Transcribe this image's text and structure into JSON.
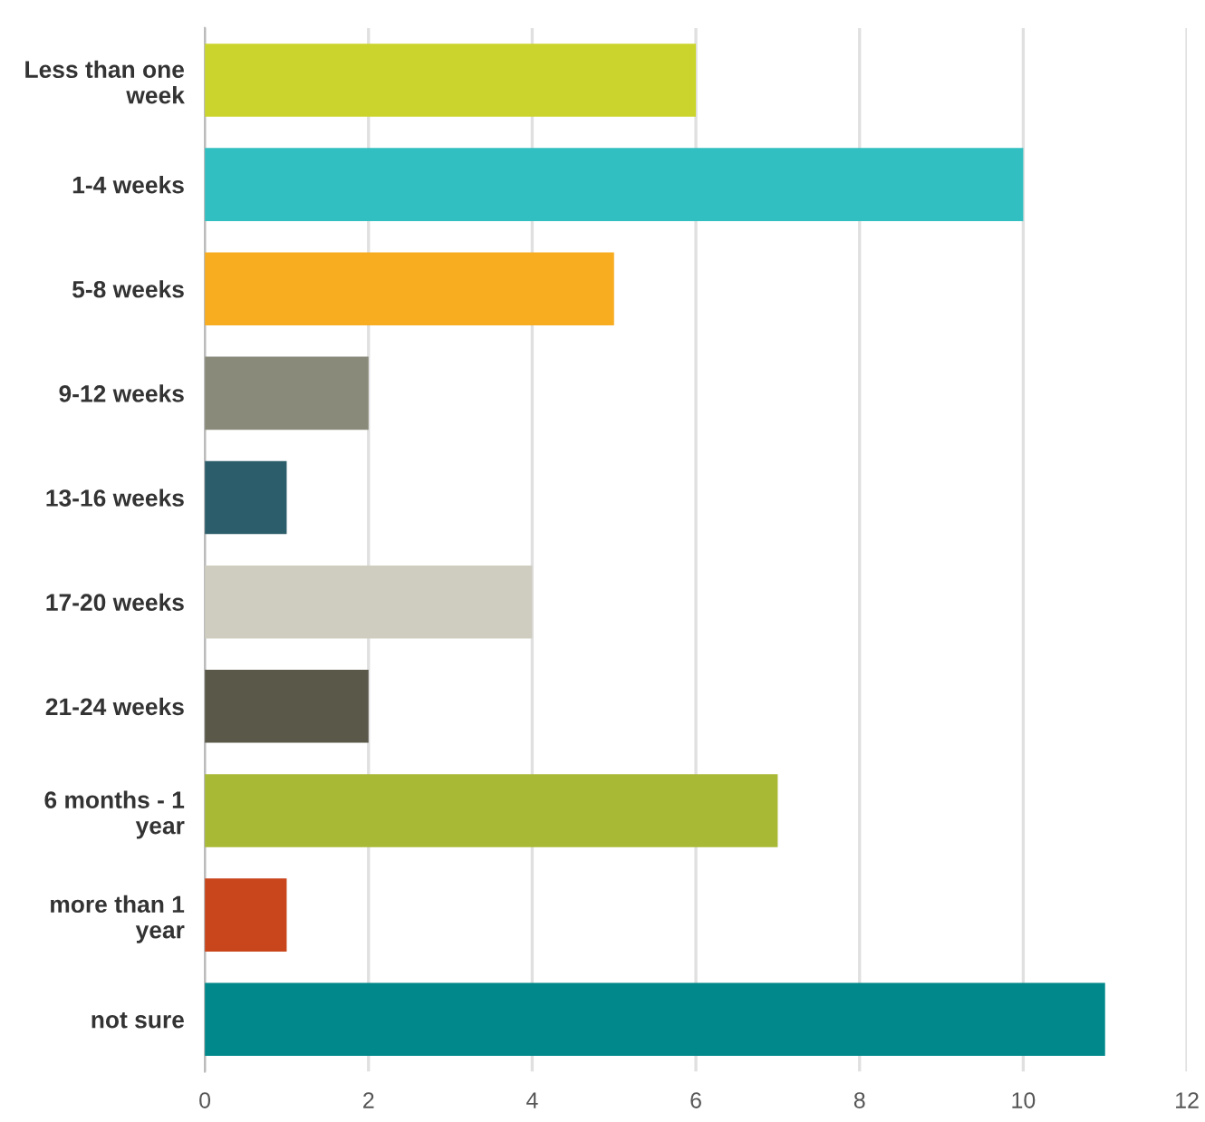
{
  "chart_data": {
    "type": "bar",
    "orientation": "horizontal",
    "categories": [
      "Less than one\nweek",
      "1-4 weeks",
      "5-8 weeks",
      "9-12 weeks",
      "13-16 weeks",
      "17-20 weeks",
      "21-24 weeks",
      "6 months - 1\nyear",
      "more than 1\nyear",
      "not sure"
    ],
    "values": [
      6,
      10,
      5,
      2,
      1,
      4,
      2,
      7,
      1,
      11
    ],
    "colors": [
      "#cbd42c",
      "#32bfc1",
      "#f7ad1f",
      "#8a8a7b",
      "#2c5d6a",
      "#cfcdbf",
      "#5a5849",
      "#a8b935",
      "#c9461c",
      "#00888a"
    ],
    "xlim": [
      0,
      12
    ],
    "xticks": [
      0,
      2,
      4,
      6,
      8,
      10,
      12
    ],
    "grid": "x"
  }
}
